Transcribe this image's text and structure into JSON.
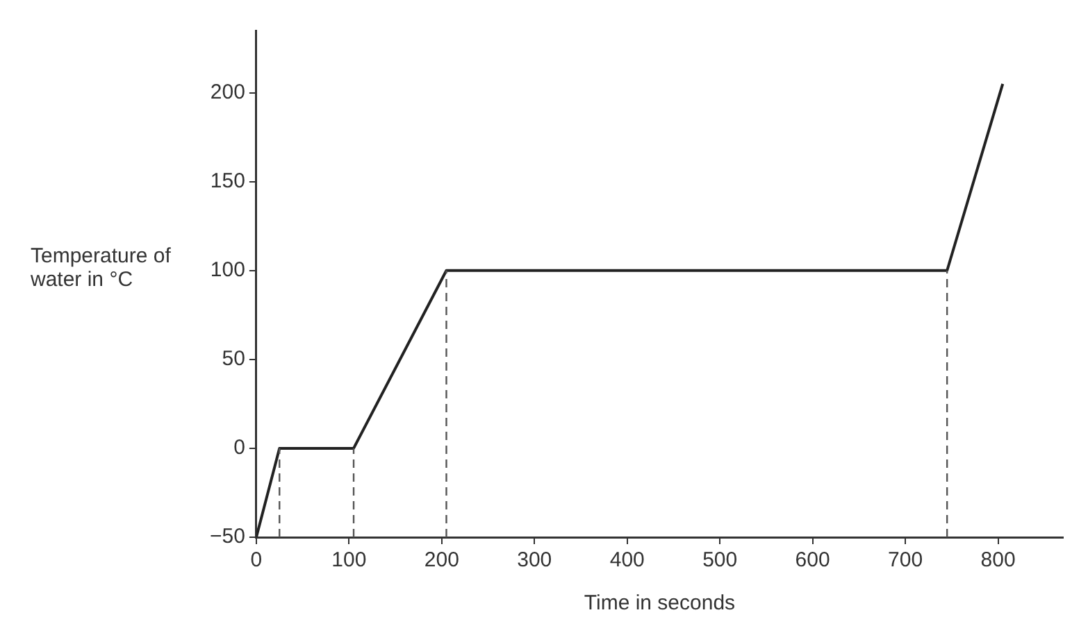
{
  "chart_data": {
    "type": "line",
    "xlabel": "Time in seconds",
    "ylabel": "Temperature of water in °C",
    "x": [
      0,
      25,
      105,
      205,
      745,
      805
    ],
    "series": [
      {
        "color": "#222222",
        "values": [
          -50,
          0,
          0,
          100,
          100,
          205
        ]
      }
    ],
    "xlim": [
      0,
      870
    ],
    "xticks": [
      0,
      100,
      200,
      300,
      400,
      500,
      600,
      700,
      800
    ],
    "ylim": [
      -50,
      235
    ],
    "yticks": [
      {
        "value": -50,
        "label": "−50"
      },
      0,
      50,
      100,
      150,
      200
    ],
    "ref_lines": [
      {
        "axis": "x",
        "value": 25,
        "line_style": "dashed",
        "color": "#555555"
      },
      {
        "axis": "x",
        "value": 105,
        "line_style": "dashed",
        "color": "#555555"
      },
      {
        "axis": "x",
        "value": 205,
        "line_style": "dashed",
        "color": "#555555"
      },
      {
        "axis": "x",
        "value": 745,
        "line_style": "dashed",
        "color": "#555555"
      }
    ],
    "grid": false,
    "legend": false,
    "marker": "none",
    "line_style": "solid"
  }
}
